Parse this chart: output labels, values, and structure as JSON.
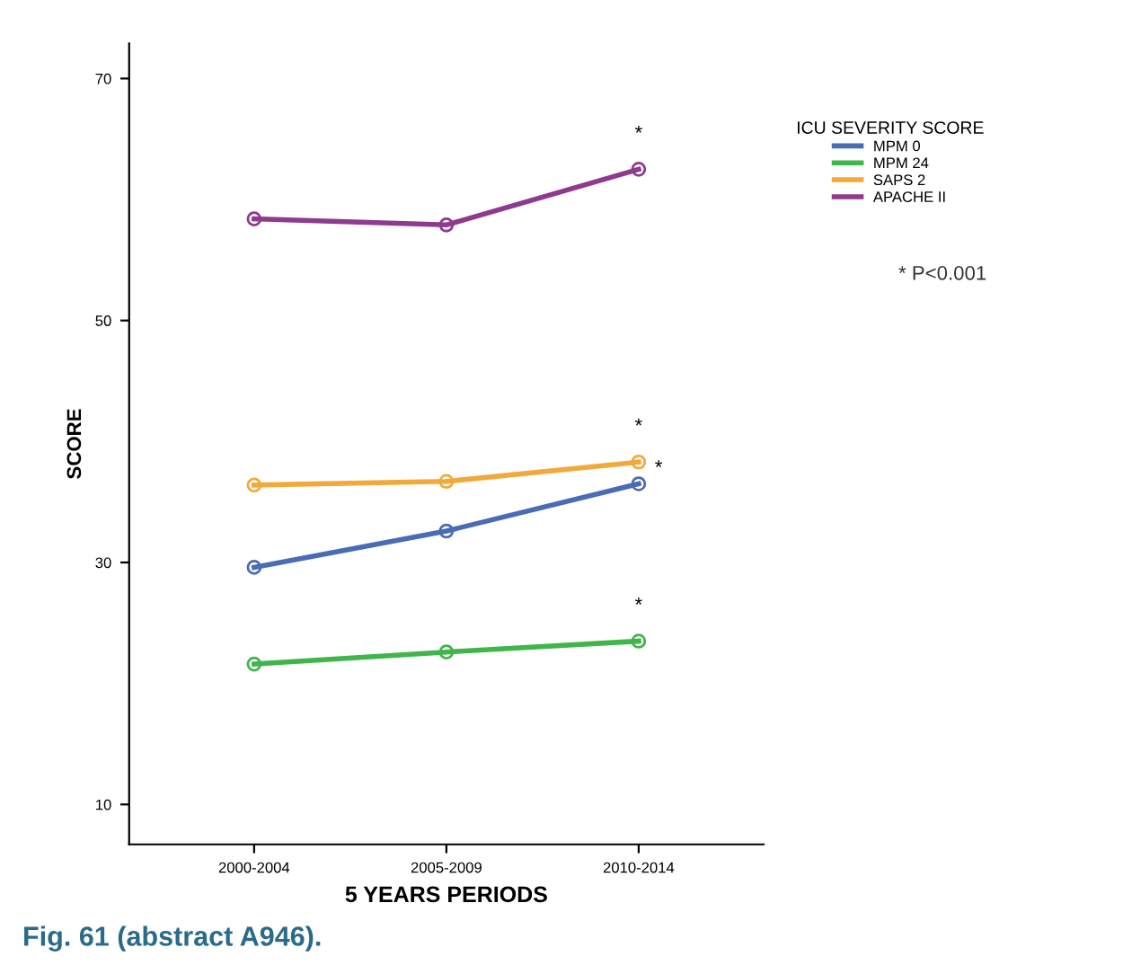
{
  "chart_data": {
    "type": "line",
    "xlabel": "5 YEARS PERIODS",
    "ylabel": "SCORE",
    "legend_title": "ICU SEVERITY SCORE",
    "legend": "right",
    "categories": [
      "2000-2004",
      "2005-2009",
      "2010-2014"
    ],
    "series": [
      {
        "name": "MPM 0",
        "color": "#4a6bb5",
        "values": [
          29.6,
          32.6,
          36.5
        ]
      },
      {
        "name": "MPM 24",
        "color": "#3fb54a",
        "values": [
          21.6,
          22.6,
          23.5
        ]
      },
      {
        "name": "SAPS 2",
        "color": "#f2a93b",
        "values": [
          36.4,
          36.7,
          38.3
        ]
      },
      {
        "name": "APACHE II",
        "color": "#8e3a8e",
        "values": [
          58.4,
          57.9,
          62.5
        ]
      }
    ],
    "ylim": [
      6.7,
      72.9
    ],
    "yticks": [
      10,
      30,
      50,
      70
    ],
    "grid": false,
    "marker": "circle",
    "line_style": "solid",
    "annotations": [
      "*",
      "*",
      "*",
      "*",
      "* P<0.001",
      "Fig. 61 (abstract A946)."
    ]
  }
}
